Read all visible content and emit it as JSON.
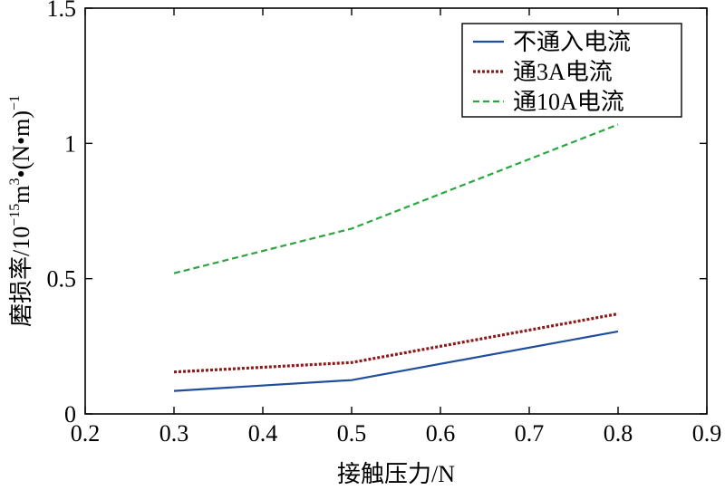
{
  "chart_data": {
    "type": "line",
    "xlabel": "接触压力/N",
    "ylabel_main": "磨损率/10",
    "ylabel_exp1": "−15",
    "ylabel_mid": "m",
    "ylabel_exp2": "3",
    "ylabel_tail": "•(N•m)",
    "ylabel_exp3": "−1",
    "xlim": [
      0.2,
      0.9
    ],
    "ylim": [
      0,
      1.5
    ],
    "xticks": [
      "0.2",
      "0.3",
      "0.4",
      "0.5",
      "0.6",
      "0.7",
      "0.8",
      "0.9"
    ],
    "yticks": [
      "0",
      "0.5",
      "1",
      "1.5"
    ],
    "legend_position": "top-right",
    "grid": false,
    "series": [
      {
        "name": "不通入电流",
        "style": "solid",
        "color": "#1f4e9c",
        "x": [
          0.3,
          0.5,
          0.8
        ],
        "y": [
          0.085,
          0.125,
          0.305
        ]
      },
      {
        "name": "通3A电流",
        "style": "dotted",
        "color": "#8b1a1a",
        "x": [
          0.3,
          0.5,
          0.8
        ],
        "y": [
          0.155,
          0.19,
          0.37
        ]
      },
      {
        "name": "通10A电流",
        "style": "dashed",
        "color": "#2ca640",
        "x": [
          0.3,
          0.5,
          0.8
        ],
        "y": [
          0.52,
          0.685,
          1.07
        ]
      }
    ]
  }
}
